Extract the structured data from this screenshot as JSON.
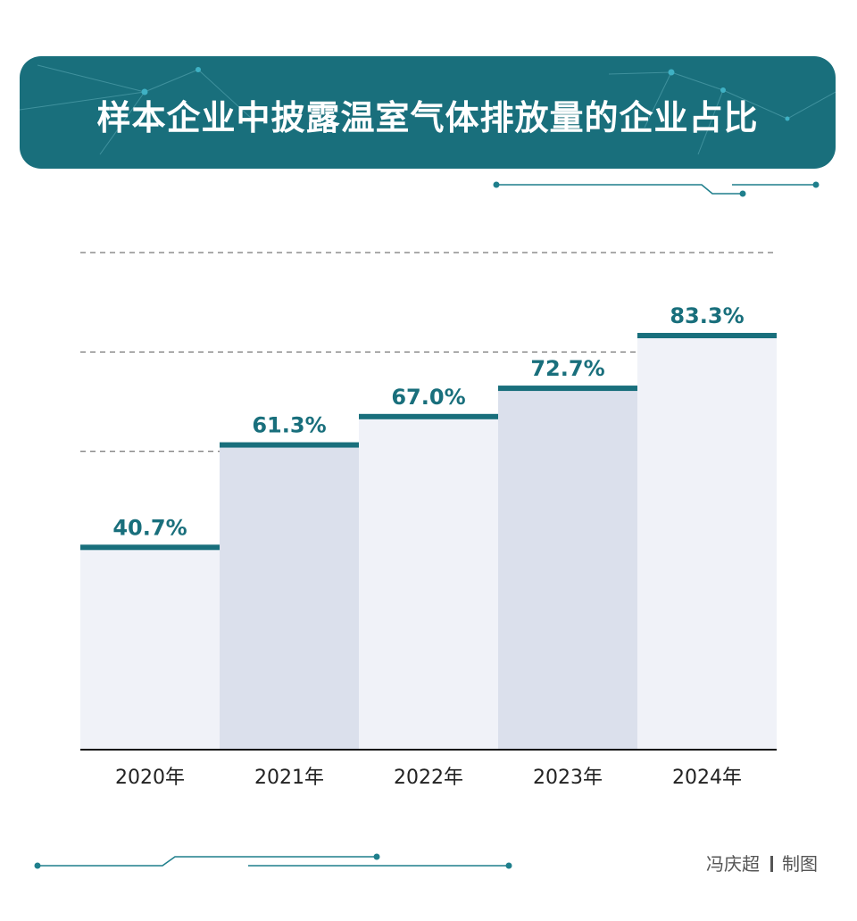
{
  "header": {
    "title": "样本企业中披露温室气体排放量的企业占比"
  },
  "credit": {
    "author": "冯庆超",
    "suffix": "制图"
  },
  "colors": {
    "accent": "#196f7c",
    "bar_light": "#f0f2f8",
    "bar_dark": "#dbe0ec",
    "grid": "#555555",
    "tick_text": "#222222"
  },
  "chart_data": {
    "type": "bar",
    "categories": [
      "2020年",
      "2021年",
      "2022年",
      "2023年",
      "2024年"
    ],
    "values": [
      40.7,
      61.3,
      67.0,
      72.7,
      83.3
    ],
    "data_labels": [
      "40.7%",
      "61.3%",
      "67.0%",
      "72.7%",
      "83.3%"
    ],
    "title": "样本企业中披露温室气体排放量的企业占比",
    "xlabel": "",
    "ylabel": "",
    "ylim": [
      0,
      100
    ],
    "grid": true,
    "legend": "none"
  }
}
